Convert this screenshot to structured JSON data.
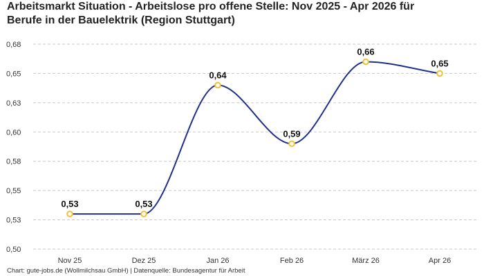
{
  "title_line1": "Arbeitsmarkt Situation - Arbeitslose pro offene Stelle: Nov 2025 - Apr 2026 für",
  "title_line2": "Berufe in der Bauelektrik (Region Stuttgart)",
  "footer": "Chart: gute-jobs.de (Wollmilchsau GmbH) | Datenquelle: Bundesagentur für Arbeit",
  "colors": {
    "line": "#1f2f8c",
    "marker": "#f2c12e",
    "grid": "#c8c8c8"
  },
  "chart_data": {
    "type": "line",
    "categories": [
      "Nov 25",
      "Dez 25",
      "Jan 26",
      "Feb 26",
      "März 26",
      "Apr 26"
    ],
    "values": [
      0.53,
      0.53,
      0.64,
      0.59,
      0.66,
      0.65
    ],
    "data_labels": [
      "0,53",
      "0,53",
      "0,64",
      "0,59",
      "0,66",
      "0,65"
    ],
    "y_ticks": [
      0.5,
      0.525,
      0.55,
      0.575,
      0.6,
      0.625,
      0.65,
      0.675
    ],
    "y_tick_labels": [
      "0,50",
      "0,53",
      "0,55",
      "0,58",
      "0,60",
      "0,63",
      "0,65",
      "0,68"
    ],
    "ylim": [
      0.5,
      0.675
    ],
    "grid": true,
    "smooth": true
  }
}
